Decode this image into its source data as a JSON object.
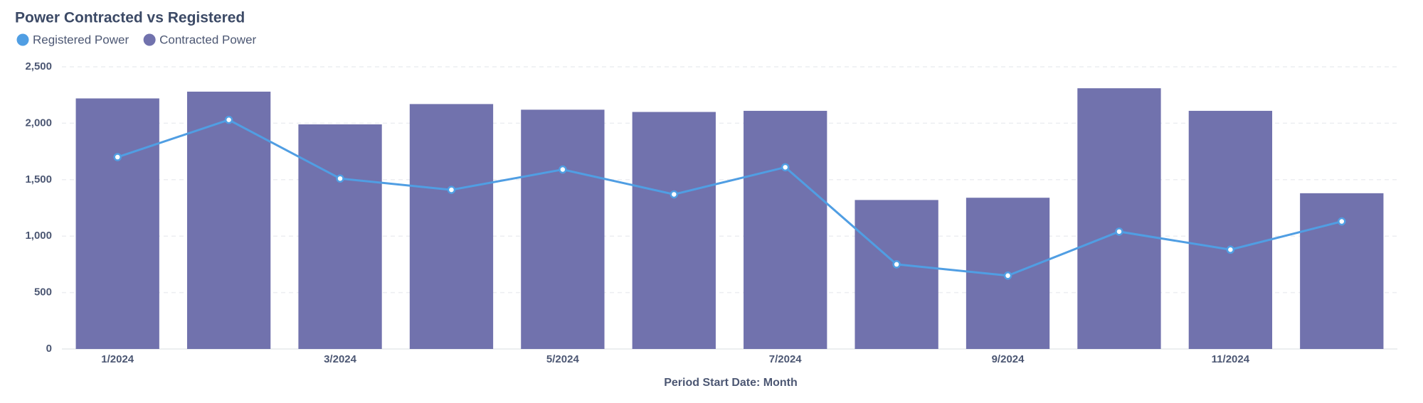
{
  "chart_data": {
    "type": "combo",
    "title": "Power Contracted vs Registered",
    "x_label": "Period Start Date: Month",
    "categories": [
      "1/2024",
      null,
      "3/2024",
      null,
      "5/2024",
      null,
      "7/2024",
      null,
      "9/2024",
      null,
      "11/2024",
      null
    ],
    "series": [
      {
        "name": "Registered Power",
        "type": "line",
        "color": "#509ee3",
        "values": [
          1700,
          2030,
          1510,
          1410,
          1590,
          1370,
          1610,
          750,
          650,
          1040,
          880,
          1130
        ]
      },
      {
        "name": "Contracted Power",
        "type": "bar",
        "color": "#7172ad",
        "values": [
          2220,
          2280,
          1990,
          2170,
          2120,
          2100,
          2110,
          1320,
          1340,
          2310,
          2110,
          1380
        ]
      }
    ],
    "ylim": [
      0,
      2500
    ],
    "yticks": [
      0,
      {
        "value": 500,
        "label": "500"
      },
      {
        "value": 1000,
        "label": "1,000"
      },
      {
        "value": 1500,
        "label": "1,500"
      },
      {
        "value": 2000,
        "label": "2,000"
      },
      {
        "value": 2500,
        "label": "2,500"
      }
    ],
    "grid": true
  }
}
